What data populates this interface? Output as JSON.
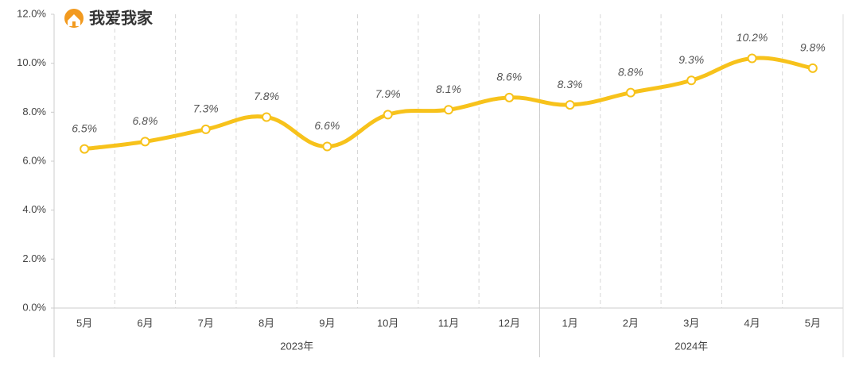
{
  "brand": "我爱我家",
  "chart_data": {
    "type": "line",
    "categories": [
      "5月",
      "6月",
      "7月",
      "8月",
      "9月",
      "10月",
      "11月",
      "12月",
      "1月",
      "2月",
      "3月",
      "4月",
      "5月"
    ],
    "groups": [
      {
        "label": "2023年",
        "count": 8
      },
      {
        "label": "2024年",
        "count": 5
      }
    ],
    "values": [
      6.5,
      6.8,
      7.3,
      7.8,
      6.6,
      7.9,
      8.1,
      8.6,
      8.3,
      8.8,
      9.3,
      10.2,
      9.8
    ],
    "value_labels": [
      "6.5%",
      "6.8%",
      "7.3%",
      "7.8%",
      "6.6%",
      "7.9%",
      "8.1%",
      "8.6%",
      "8.3%",
      "8.8%",
      "9.3%",
      "10.2%",
      "9.8%"
    ],
    "color": "#f7c21b",
    "ylim": [
      0,
      12
    ],
    "yticks": [
      {
        "value": 0,
        "label": "0.0%"
      },
      {
        "value": 2,
        "label": "2.0%"
      },
      {
        "value": 4,
        "label": "4.0%"
      },
      {
        "value": 6,
        "label": "6.0%"
      },
      {
        "value": 8,
        "label": "8.0%"
      },
      {
        "value": 10,
        "label": "10.0%"
      },
      {
        "value": 12,
        "label": "12.0%"
      }
    ],
    "grid": true
  }
}
